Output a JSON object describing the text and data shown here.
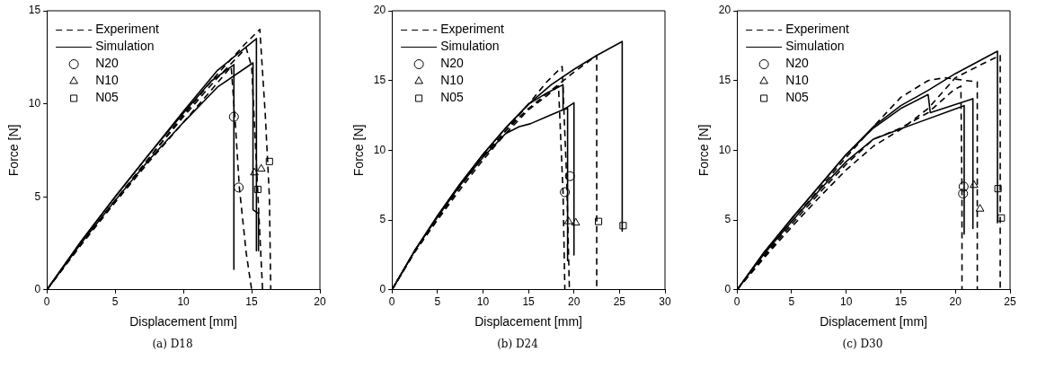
{
  "chart_data": [
    {
      "type": "line",
      "xlabel": "Displacement [mm]",
      "ylabel": "Force [N]",
      "xlim": [
        0,
        20
      ],
      "ylim": [
        0,
        15
      ],
      "xticks": [
        0,
        5,
        10,
        15,
        20
      ],
      "yticks": [
        0,
        5,
        10,
        15
      ],
      "grid": false,
      "legend": "top left",
      "annotations": [
        "(a) D18"
      ],
      "series": [
        {
          "name": "Experiment",
          "color": "#000000",
          "line_style": "dashed",
          "x": [
            0,
            2.5,
            5,
            7.5,
            10,
            12.5,
            14.5,
            15.6,
            16.0,
            16.3,
            16.4
          ],
          "values": [
            0,
            2.5,
            4.8,
            7.1,
            9.4,
            11.6,
            13.2,
            14.0,
            9.4,
            5,
            0
          ]
        },
        {
          "color": "#000000",
          "line_style": "dashed",
          "x": [
            0,
            2.5,
            5,
            7.5,
            10,
            12.5,
            14.6,
            15.0,
            15.4,
            15.8
          ],
          "values": [
            0,
            2.5,
            4.8,
            7.1,
            9.3,
            11.4,
            13.0,
            12.0,
            6,
            0
          ]
        },
        {
          "color": "#000000",
          "line_style": "dashed",
          "x": [
            0,
            2.5,
            5,
            7.5,
            10,
            12,
            13.5,
            13.8,
            14.1,
            14.6,
            15.0
          ],
          "values": [
            0,
            2.4,
            4.7,
            6.9,
            9.0,
            10.7,
            12.0,
            9,
            5.5,
            2,
            0
          ]
        },
        {
          "name": "Simulation",
          "color": "#000000",
          "line_style": "solid",
          "x": [
            0,
            2.5,
            5,
            7.5,
            10,
            12.5,
            15.35,
            15.35
          ],
          "values": [
            0,
            2.6,
            5.0,
            7.3,
            9.6,
            11.8,
            13.5,
            2.1
          ]
        },
        {
          "color": "#000000",
          "line_style": "solid",
          "x": [
            0,
            2.5,
            5,
            7.5,
            10,
            12,
            13.7,
            13.7
          ],
          "values": [
            0,
            2.6,
            5.0,
            7.3,
            9.5,
            11.2,
            12.1,
            1.1
          ]
        },
        {
          "color": "#000000",
          "line_style": "solid",
          "x": [
            0,
            2.5,
            5,
            7.5,
            10,
            12.5,
            15.1,
            15.1,
            15.5,
            15.5
          ],
          "values": [
            0,
            2.5,
            4.8,
            7.0,
            9.0,
            10.9,
            12.2,
            4.3,
            4.1,
            2.1
          ]
        },
        {
          "name": "N20",
          "type": "scatter",
          "marker": "circle",
          "color": "#000000",
          "x": [
            13.7,
            14.05
          ],
          "values": [
            9.3,
            5.5
          ]
        },
        {
          "name": "N10",
          "type": "scatter",
          "marker": "triangle",
          "color": "#000000",
          "x": [
            15.2,
            15.7
          ],
          "values": [
            6.3,
            6.5
          ]
        },
        {
          "name": "N05",
          "type": "scatter",
          "marker": "square",
          "color": "#000000",
          "x": [
            15.45,
            16.3
          ],
          "values": [
            5.4,
            6.9
          ]
        }
      ]
    },
    {
      "type": "line",
      "xlabel": "Displacement [mm]",
      "ylabel": "Force [N]",
      "xlim": [
        0,
        30
      ],
      "ylim": [
        0,
        20
      ],
      "xticks": [
        0,
        5,
        10,
        15,
        20,
        25,
        30
      ],
      "yticks": [
        0,
        5,
        10,
        15,
        20
      ],
      "grid": false,
      "legend": "top left",
      "annotations": [
        "(b) D24"
      ],
      "series": [
        {
          "name": "Experiment",
          "color": "#000000",
          "line_style": "dashed",
          "x": [
            0,
            2.5,
            5,
            7.5,
            10,
            12.5,
            15,
            17.5,
            20,
            22.5,
            22.5
          ],
          "values": [
            0,
            2.8,
            5.2,
            7.5,
            9.6,
            11.4,
            13.0,
            14.3,
            15.6,
            16.8,
            0
          ]
        },
        {
          "color": "#000000",
          "line_style": "dashed",
          "x": [
            0,
            2.5,
            5,
            7.5,
            10,
            12.5,
            15,
            17,
            18.7,
            19.2,
            19.5
          ],
          "values": [
            0,
            2.7,
            5.1,
            7.4,
            9.5,
            11.4,
            13.3,
            14.9,
            16.0,
            8,
            0
          ]
        },
        {
          "color": "#000000",
          "line_style": "dashed",
          "x": [
            0,
            2.5,
            5,
            7.5,
            10,
            12.5,
            15,
            17,
            18.3,
            18.8,
            19.0
          ],
          "values": [
            0,
            2.7,
            5.0,
            7.2,
            9.3,
            11.2,
            12.9,
            13.9,
            14.6,
            7,
            0
          ]
        },
        {
          "name": "Simulation",
          "color": "#000000",
          "line_style": "solid",
          "x": [
            0,
            2.5,
            5,
            7.5,
            10,
            12.5,
            15,
            17.5,
            20,
            22.5,
            25.3,
            25.3
          ],
          "values": [
            0,
            2.8,
            5.3,
            7.6,
            9.7,
            11.6,
            13.3,
            14.7,
            15.8,
            16.8,
            17.8,
            4.2
          ]
        },
        {
          "color": "#000000",
          "line_style": "solid",
          "x": [
            0,
            2.5,
            5,
            7.5,
            10,
            12.5,
            15,
            17,
            18.8,
            18.8,
            19.3,
            19.3
          ],
          "values": [
            0,
            2.8,
            5.3,
            7.6,
            9.7,
            11.6,
            13.3,
            14.1,
            14.7,
            12.9,
            13.0,
            2.1
          ]
        },
        {
          "color": "#000000",
          "line_style": "solid",
          "x": [
            0,
            2.5,
            5,
            7.5,
            10,
            12.5,
            14,
            15.2,
            17,
            18.8,
            20,
            20
          ],
          "values": [
            0,
            2.8,
            5.2,
            7.5,
            9.5,
            11.2,
            11.7,
            11.9,
            12.4,
            12.9,
            13.4,
            2.5
          ]
        },
        {
          "name": "N20",
          "type": "scatter",
          "marker": "circle",
          "color": "#000000",
          "x": [
            19.0,
            19.55
          ],
          "values": [
            7.0,
            8.15
          ]
        },
        {
          "name": "N10",
          "type": "scatter",
          "marker": "triangle",
          "color": "#000000",
          "x": [
            19.4,
            20.2
          ],
          "values": [
            4.9,
            4.8
          ]
        },
        {
          "name": "N05",
          "type": "scatter",
          "marker": "square",
          "color": "#000000",
          "x": [
            22.7,
            25.4
          ],
          "values": [
            4.9,
            4.6
          ]
        }
      ]
    },
    {
      "type": "line",
      "xlabel": "Displacement [mm]",
      "ylabel": "Force [N]",
      "xlim": [
        0,
        25
      ],
      "ylim": [
        0,
        20
      ],
      "xticks": [
        0,
        5,
        10,
        15,
        20,
        25
      ],
      "yticks": [
        0,
        5,
        10,
        15,
        20
      ],
      "grid": false,
      "legend": "top left",
      "annotations": [
        "(c) D30"
      ],
      "series": [
        {
          "name": "Experiment",
          "color": "#000000",
          "line_style": "dashed",
          "x": [
            0,
            2.5,
            5,
            7.5,
            10,
            12.5,
            15,
            17.5,
            20,
            22.5,
            24.1,
            24.1
          ],
          "values": [
            0,
            2.3,
            4.5,
            6.6,
            8.6,
            10.3,
            11.5,
            13.0,
            15.2,
            16.2,
            16.8,
            0
          ]
        },
        {
          "color": "#000000",
          "line_style": "dashed",
          "x": [
            0,
            2.5,
            5,
            7.5,
            10,
            12.5,
            15,
            17.5,
            19,
            22.0,
            22.0
          ],
          "values": [
            0,
            2.5,
            4.9,
            7.2,
            9.5,
            11.7,
            13.8,
            15.0,
            15.2,
            14.9,
            0
          ]
        },
        {
          "color": "#000000",
          "line_style": "dashed",
          "x": [
            0,
            2.5,
            5,
            7.5,
            10,
            12.5,
            15,
            17.5,
            19.8,
            20.5,
            20.6,
            20.6
          ],
          "values": [
            0,
            2.4,
            4.7,
            6.9,
            9.0,
            10.8,
            11.6,
            12.7,
            14.3,
            14.6,
            7,
            0
          ]
        },
        {
          "name": "Simulation",
          "color": "#000000",
          "line_style": "solid",
          "x": [
            0,
            2.5,
            5,
            7.5,
            10,
            12.5,
            15,
            17.5,
            20,
            23.85,
            23.85
          ],
          "values": [
            0,
            2.7,
            5.1,
            7.4,
            9.7,
            11.7,
            13.2,
            14.3,
            15.5,
            17.1,
            4.8
          ]
        },
        {
          "color": "#000000",
          "line_style": "solid",
          "x": [
            0,
            2.5,
            5,
            7.5,
            10,
            12.5,
            15,
            17.5,
            17.7,
            21.6,
            21.6
          ],
          "values": [
            0,
            2.7,
            5.1,
            7.4,
            9.7,
            11.6,
            13.0,
            14.0,
            12.7,
            13.7,
            4.4
          ]
        },
        {
          "color": "#000000",
          "line_style": "solid",
          "x": [
            0,
            2.5,
            5,
            7.5,
            10,
            12.5,
            15.2,
            20.8,
            20.8
          ],
          "values": [
            0,
            2.6,
            4.9,
            7.1,
            9.2,
            10.8,
            11.6,
            13.2,
            4.0
          ]
        },
        {
          "name": "N20",
          "type": "scatter",
          "marker": "circle",
          "color": "#000000",
          "x": [
            20.75,
            20.7
          ],
          "values": [
            7.4,
            6.9
          ]
        },
        {
          "name": "N10",
          "type": "scatter",
          "marker": "triangle",
          "color": "#000000",
          "x": [
            21.7,
            22.25
          ],
          "values": [
            7.5,
            5.8
          ]
        },
        {
          "name": "N05",
          "type": "scatter",
          "marker": "square",
          "color": "#000000",
          "x": [
            23.9,
            24.2
          ],
          "values": [
            7.25,
            5.15
          ]
        }
      ]
    }
  ]
}
